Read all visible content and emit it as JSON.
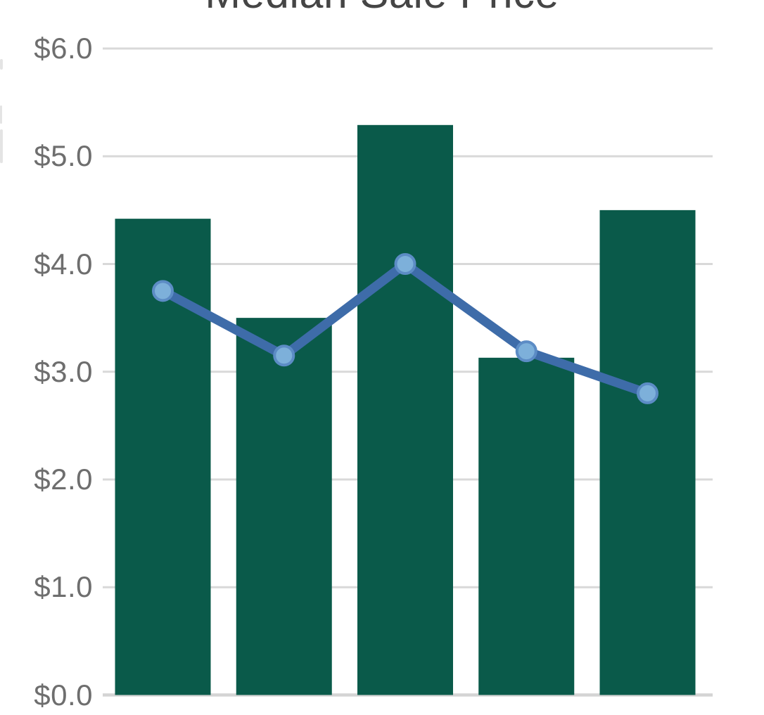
{
  "page": {
    "background": "#FFFFFF"
  },
  "chart": {
    "title": "Median Sale Price",
    "title_color": "#454545",
    "title_clipped_at_top": true
  },
  "chart_data": {
    "type": "bar",
    "title": "Median Sale Price",
    "categories": [
      "",
      "",
      "",
      "",
      ""
    ],
    "x_axis_labels_visible": false,
    "series": [
      {
        "name": "bars",
        "type": "bar",
        "color": "#0A5A4A",
        "values": [
          4.42,
          3.5,
          5.29,
          3.13,
          4.5
        ]
      },
      {
        "name": "line",
        "type": "line",
        "color": "#3E6CA9",
        "marker_fill": "#7DB0DA",
        "marker_stroke": "#5C8CC5",
        "values": [
          3.75,
          3.15,
          4.0,
          3.19,
          2.8
        ]
      }
    ],
    "ylim": [
      0,
      6
    ],
    "y_tick_values": [
      6,
      5,
      4,
      3,
      2,
      1,
      0
    ],
    "y_tick_labels": [
      "$6.0",
      "$5.0",
      "$4.0",
      "$3.0",
      "$2.0",
      "$1.0",
      "$0.0"
    ],
    "y_tick_label_color": "#6E6E6E",
    "grid": true,
    "gridline_color": "#D9D9D9",
    "baseline_color": "#D4D4D4",
    "legend": "none"
  }
}
